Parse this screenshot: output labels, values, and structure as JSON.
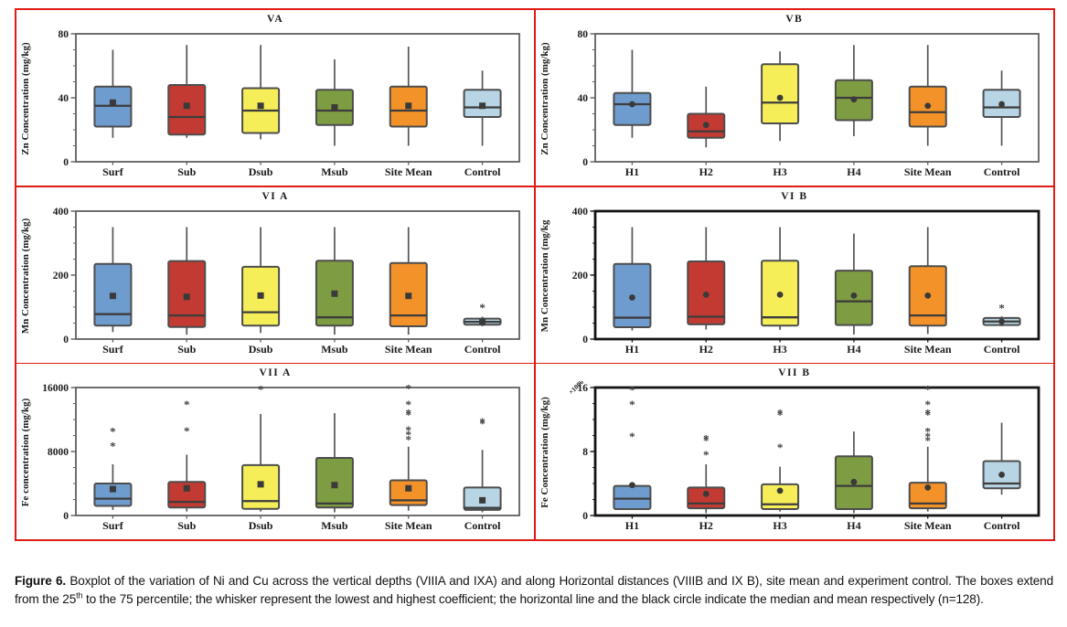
{
  "figure": {
    "caption": {
      "label": "Figure 6.",
      "part1": " Boxplot of the variation of Ni and Cu across the vertical depths (VIIIA and IXA) and along Horizontal distances (VIIIB and IX B), site mean and experiment control. The boxes extend from the 25",
      "sup": "th",
      "part2": " to the 75 percentile; the whisker represent the lowest and highest coefficient; the horizontal line and the black circle indicate the median and mean respectively (n=128)."
    }
  },
  "style": {
    "palette": [
      "#6f9ccf",
      "#c23a32",
      "#f6ee58",
      "#7e9c41",
      "#f39228",
      "#b7d5e4"
    ],
    "box_stroke": "#4d4d4d",
    "whisker_color": "#555555",
    "median_color": "#3d3d3d",
    "mean_fill": "#3a3a3a",
    "outlier_color": "#3f3f3f",
    "frame_normal": "#5f5f5f",
    "frame_thick": "#141414",
    "grid_red": "#e11a16",
    "text_color": "#1a1a1a"
  },
  "chart_data": [
    {
      "type": "boxplot",
      "title": "VA",
      "ylabel": "Zn Concentration (mg/kg)",
      "ylim": [
        0,
        80
      ],
      "yticks": [
        0,
        40,
        80
      ],
      "yminor_step": 10,
      "frame": "normal",
      "mean_marker": "square",
      "categories": [
        "Surf",
        "Sub",
        "Dsub",
        "Msub",
        "Site Mean",
        "Control"
      ],
      "boxes": [
        {
          "low": 15,
          "q1": 22,
          "median": 35,
          "q3": 47,
          "high": 70,
          "mean": 37,
          "outliers": []
        },
        {
          "low": 15,
          "q1": 17,
          "median": 28,
          "q3": 48,
          "high": 73,
          "mean": 35,
          "outliers": []
        },
        {
          "low": 14,
          "q1": 18,
          "median": 32,
          "q3": 46,
          "high": 73,
          "mean": 35,
          "outliers": []
        },
        {
          "low": 10,
          "q1": 23,
          "median": 32,
          "q3": 45,
          "high": 64,
          "mean": 34,
          "outliers": []
        },
        {
          "low": 10,
          "q1": 22,
          "median": 32,
          "q3": 47,
          "high": 72,
          "mean": 35,
          "outliers": []
        },
        {
          "low": 10,
          "q1": 28,
          "median": 34,
          "q3": 45,
          "high": 57,
          "mean": 35,
          "outliers": []
        }
      ]
    },
    {
      "type": "boxplot",
      "title": "VB",
      "ylabel": "Zn Concentration (mg/kg)",
      "ylim": [
        0,
        80
      ],
      "yticks": [
        0,
        40,
        80
      ],
      "yminor_step": 10,
      "frame": "normal",
      "mean_marker": "circle",
      "categories": [
        "H1",
        "H2",
        "H3",
        "H4",
        "Site Mean",
        "Control"
      ],
      "boxes": [
        {
          "low": 15,
          "q1": 23,
          "median": 36,
          "q3": 43,
          "high": 70,
          "mean": 36,
          "outliers": []
        },
        {
          "low": 9,
          "q1": 15,
          "median": 19,
          "q3": 30,
          "high": 47,
          "mean": 23,
          "outliers": []
        },
        {
          "low": 13,
          "q1": 24,
          "median": 37,
          "q3": 61,
          "high": 69,
          "mean": 40,
          "outliers": []
        },
        {
          "low": 16,
          "q1": 26,
          "median": 40,
          "q3": 51,
          "high": 73,
          "mean": 39,
          "outliers": []
        },
        {
          "low": 10,
          "q1": 22,
          "median": 31,
          "q3": 47,
          "high": 73,
          "mean": 35,
          "outliers": []
        },
        {
          "low": 10,
          "q1": 28,
          "median": 34,
          "q3": 45,
          "high": 57,
          "mean": 36,
          "outliers": []
        }
      ]
    },
    {
      "type": "boxplot",
      "title": "VI A",
      "ylabel": "Mn Concentration (mg/kg)",
      "ylim": [
        0,
        400
      ],
      "yticks": [
        0,
        200,
        400
      ],
      "yminor_step": 50,
      "frame": "normal",
      "mean_marker": "square",
      "categories": [
        "Surf",
        "Sub",
        "Dsub",
        "Msub",
        "Site Mean",
        "Control"
      ],
      "boxes": [
        {
          "low": 22,
          "q1": 42,
          "median": 78,
          "q3": 235,
          "high": 350,
          "mean": 135,
          "outliers": []
        },
        {
          "low": 14,
          "q1": 38,
          "median": 74,
          "q3": 244,
          "high": 350,
          "mean": 132,
          "outliers": []
        },
        {
          "low": 19,
          "q1": 42,
          "median": 84,
          "q3": 226,
          "high": 350,
          "mean": 136,
          "outliers": []
        },
        {
          "low": 14,
          "q1": 42,
          "median": 68,
          "q3": 245,
          "high": 350,
          "mean": 142,
          "outliers": []
        },
        {
          "low": 14,
          "q1": 40,
          "median": 74,
          "q3": 238,
          "high": 350,
          "mean": 135,
          "outliers": []
        },
        {
          "low": 40,
          "q1": 45,
          "median": 54,
          "q3": 64,
          "high": 70,
          "mean": 54,
          "outliers": [
            98
          ]
        }
      ]
    },
    {
      "type": "boxplot",
      "title": "VI B",
      "ylabel": "Mn Concentration (mg/kg",
      "ylim": [
        0,
        400
      ],
      "yticks": [
        0,
        200,
        400
      ],
      "yminor_step": 50,
      "frame": "thick",
      "mean_marker": "circle",
      "categories": [
        "H1",
        "H2",
        "H3",
        "H4",
        "Site Mean",
        "Control"
      ],
      "boxes": [
        {
          "low": 27,
          "q1": 37,
          "median": 67,
          "q3": 235,
          "high": 350,
          "mean": 130,
          "outliers": []
        },
        {
          "low": 30,
          "q1": 46,
          "median": 70,
          "q3": 243,
          "high": 350,
          "mean": 139,
          "outliers": []
        },
        {
          "low": 29,
          "q1": 42,
          "median": 68,
          "q3": 245,
          "high": 350,
          "mean": 139,
          "outliers": []
        },
        {
          "low": 14,
          "q1": 44,
          "median": 118,
          "q3": 214,
          "high": 330,
          "mean": 136,
          "outliers": []
        },
        {
          "low": 16,
          "q1": 42,
          "median": 74,
          "q3": 228,
          "high": 350,
          "mean": 136,
          "outliers": []
        },
        {
          "low": 40,
          "q1": 44,
          "median": 55,
          "q3": 66,
          "high": 71,
          "mean": 55,
          "outliers": [
            97
          ]
        }
      ]
    },
    {
      "type": "boxplot",
      "title": "VII A",
      "ylabel": "Fe concentration (mg/kg)",
      "ylim": [
        0,
        16000
      ],
      "yticks": [
        0,
        8000,
        16000
      ],
      "yminor_step": 2000,
      "frame": "normal",
      "mean_marker": "square",
      "categories": [
        "Surf",
        "Sub",
        "Dsub",
        "Msub",
        "Site Mean",
        "Control"
      ],
      "boxes": [
        {
          "low": 700,
          "q1": 1200,
          "median": 2100,
          "q3": 4000,
          "high": 6400,
          "mean": 3300,
          "outliers": [
            10500,
            8700
          ]
        },
        {
          "low": 500,
          "q1": 1000,
          "median": 1700,
          "q3": 4200,
          "high": 7600,
          "mean": 3400,
          "outliers": [
            13900,
            10600
          ]
        },
        {
          "low": 500,
          "q1": 830,
          "median": 1800,
          "q3": 6300,
          "high": 12700,
          "mean": 3900,
          "outliers": [
            15800
          ]
        },
        {
          "low": 400,
          "q1": 1000,
          "median": 1500,
          "q3": 7200,
          "high": 12800,
          "mean": 3800,
          "outliers": []
        },
        {
          "low": 600,
          "q1": 1300,
          "median": 1900,
          "q3": 4400,
          "high": 8600,
          "mean": 3400,
          "outliers": [
            15900,
            13900,
            12800,
            12600,
            10700,
            10100,
            9500
          ]
        },
        {
          "low": 400,
          "q1": 700,
          "median": 950,
          "q3": 3500,
          "high": 8200,
          "mean": 1900,
          "outliers": [
            11700,
            11500
          ]
        }
      ]
    },
    {
      "type": "boxplot",
      "title": "VII B",
      "ylabel": "Fe  Concentration (mg/kg)",
      "y_scale_note": "×1000",
      "ylim": [
        0,
        16
      ],
      "yticks": [
        0,
        8,
        16
      ],
      "yminor_step": 2,
      "frame": "thick",
      "mean_marker": "circle",
      "categories": [
        "H1",
        "H2",
        "H3",
        "H4",
        "Site Mean",
        "Control"
      ],
      "boxes": [
        {
          "low": 0.8,
          "q1": 0.8,
          "median": 2.1,
          "q3": 3.7,
          "high": 3.7,
          "mean": 3.8,
          "outliers": [
            15.7,
            13.9,
            9.9
          ]
        },
        {
          "low": 0.3,
          "q1": 0.9,
          "median": 1.5,
          "q3": 3.5,
          "high": 6.4,
          "mean": 2.7,
          "outliers": [
            9.6,
            9.4,
            7.6
          ]
        },
        {
          "low": 0.5,
          "q1": 0.8,
          "median": 1.4,
          "q3": 3.9,
          "high": 6.1,
          "mean": 3.1,
          "outliers": [
            12.8,
            12.6,
            8.5
          ]
        },
        {
          "low": 0.3,
          "q1": 0.8,
          "median": 3.7,
          "q3": 7.4,
          "high": 10.5,
          "mean": 4.2,
          "outliers": []
        },
        {
          "low": 0.5,
          "q1": 0.9,
          "median": 1.5,
          "q3": 4.1,
          "high": 8.6,
          "mean": 3.5,
          "outliers": [
            15.8,
            13.9,
            12.8,
            12.6,
            10.5,
            9.9,
            9.4
          ]
        },
        {
          "low": 2.6,
          "q1": 3.4,
          "median": 4.0,
          "q3": 6.8,
          "high": 11.6,
          "mean": 5.1,
          "outliers": []
        }
      ]
    }
  ]
}
